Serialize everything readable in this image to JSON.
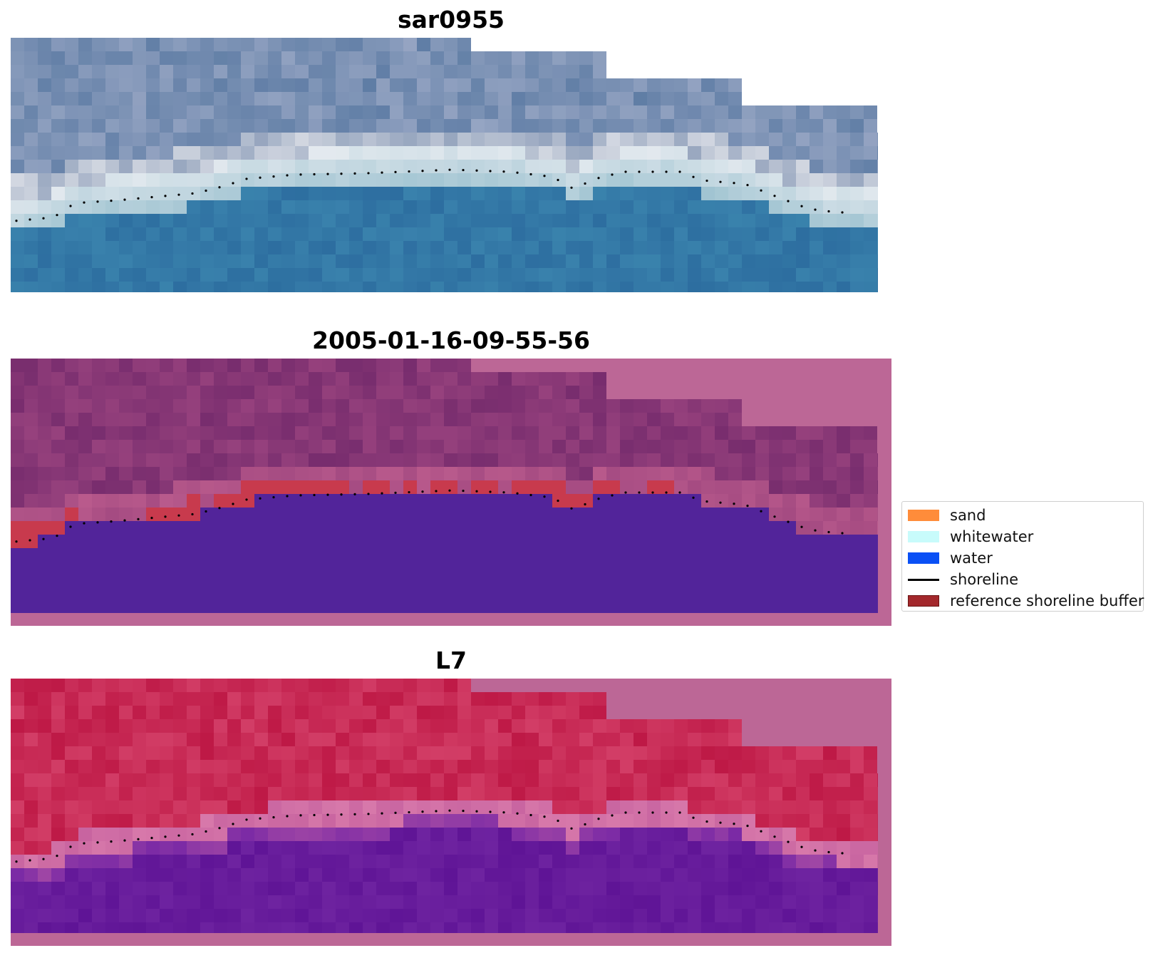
{
  "panels": [
    {
      "title": "sar0955",
      "kind": "rgb"
    },
    {
      "title": "2005-01-16-09-55-56",
      "kind": "classified"
    },
    {
      "title": "L7",
      "kind": "nir"
    }
  ],
  "legend": {
    "items": [
      {
        "label": "sand",
        "color": "#ff8c3a",
        "kind": "patch"
      },
      {
        "label": "whitewater",
        "color": "#c8fbfb",
        "kind": "patch"
      },
      {
        "label": "water",
        "color": "#0a50f5",
        "kind": "patch"
      },
      {
        "label": "shoreline",
        "color": "#000000",
        "kind": "line"
      },
      {
        "label": "reference shoreline buffer",
        "color": "#a3282c",
        "kind": "patch"
      }
    ]
  },
  "colors": {
    "background_pad": "#bc6796",
    "water_class": "#52249a",
    "buffer": "#c83a4d",
    "shoreline_dots": "#000000"
  }
}
